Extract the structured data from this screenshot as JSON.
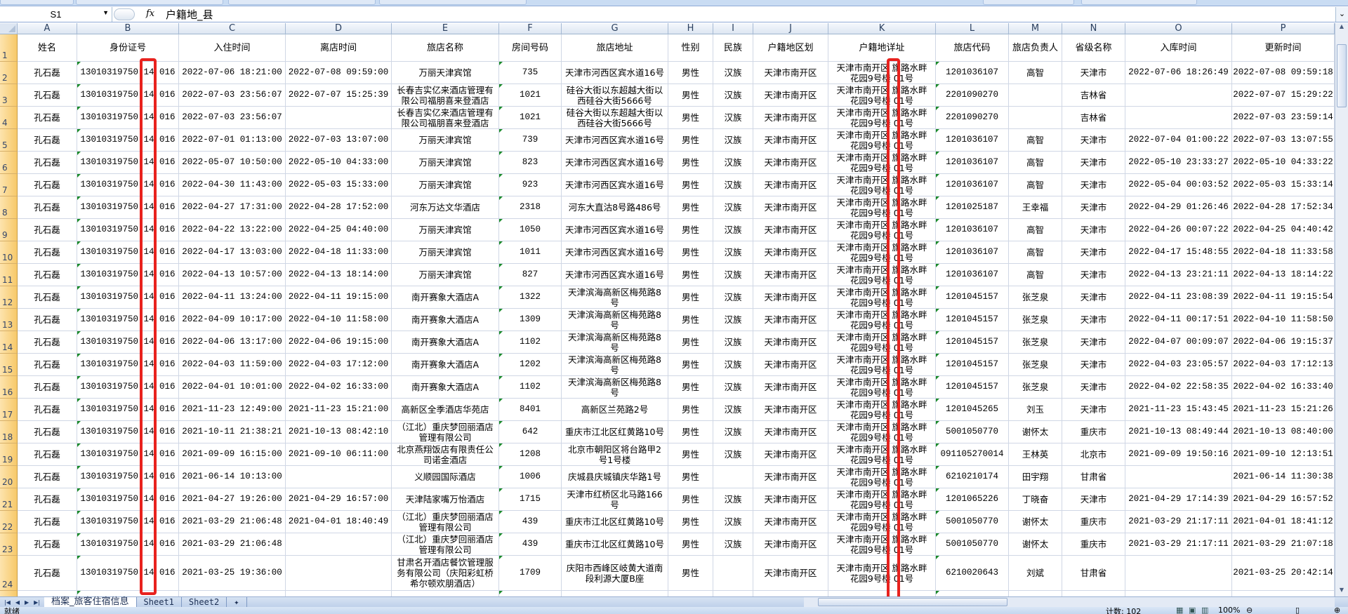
{
  "formula_bar": {
    "name_box": "S1",
    "fx_label": "fx",
    "content": "户籍地_县"
  },
  "columns": [
    "A",
    "B",
    "C",
    "D",
    "E",
    "F",
    "G",
    "H",
    "I",
    "J",
    "K",
    "L",
    "M",
    "N",
    "O",
    "P"
  ],
  "header_row": {
    "row_number": "1",
    "cells": [
      "姓名",
      "身份证号",
      "入住时间",
      "离店时间",
      "旅店名称",
      "房间号码",
      "旅店地址",
      "性别",
      "民族",
      "户籍地区划",
      "户籍地详址",
      "旅店代码",
      "旅店负责人",
      "省级名称",
      "入库时间",
      "更新时间"
    ]
  },
  "rows": [
    {
      "n": "2",
      "c": [
        "孔石磊",
        "13010319750 14 016",
        "2022-07-06 18:21:00",
        "2022-07-08 09:59:00",
        "万丽天津宾馆",
        "735",
        "天津市河西区宾水道16号",
        "男性",
        "汉族",
        "天津市南开区",
        "天津市南开区 旗路水畔\n花园9号楼 01号",
        "1201036107",
        "高智",
        "天津市",
        "2022-07-06 18:26:49",
        "2022-07-08 09:59:18"
      ]
    },
    {
      "n": "3",
      "c": [
        "孔石磊",
        "13010319750 14 016",
        "2022-07-03 23:56:07",
        "2022-07-07 15:25:39",
        "长春吉实亿来酒店管理有\n限公司福朋喜来登酒店",
        "1021",
        "硅谷大街以东超越大街以\n西硅谷大街5666号",
        "男性",
        "汉族",
        "天津市南开区",
        "天津市南开区 旗路水畔\n花园9号楼 01号",
        "2201090270",
        "",
        "吉林省",
        "",
        "2022-07-07 15:29:22"
      ]
    },
    {
      "n": "4",
      "c": [
        "孔石磊",
        "13010319750 14 016",
        "2022-07-03 23:56:07",
        "",
        "长春吉实亿来酒店管理有\n限公司福朋喜来登酒店",
        "1021",
        "硅谷大街以东超越大街以\n西硅谷大街5666号",
        "男性",
        "汉族",
        "天津市南开区",
        "天津市南开区 旗路水畔\n花园9号楼 01号",
        "2201090270",
        "",
        "吉林省",
        "",
        "2022-07-03 23:59:14"
      ]
    },
    {
      "n": "5",
      "c": [
        "孔石磊",
        "13010319750 14 016",
        "2022-07-01 01:13:00",
        "2022-07-03 13:07:00",
        "万丽天津宾馆",
        "739",
        "天津市河西区宾水道16号",
        "男性",
        "汉族",
        "天津市南开区",
        "天津市南开区 旗路水畔\n花园9号楼 01号",
        "1201036107",
        "高智",
        "天津市",
        "2022-07-04 01:00:22",
        "2022-07-03 13:07:55"
      ]
    },
    {
      "n": "6",
      "c": [
        "孔石磊",
        "13010319750 14 016",
        "2022-05-07 10:50:00",
        "2022-05-10 04:33:00",
        "万丽天津宾馆",
        "823",
        "天津市河西区宾水道16号",
        "男性",
        "汉族",
        "天津市南开区",
        "天津市南开区 旗路水畔\n花园9号楼 01号",
        "1201036107",
        "高智",
        "天津市",
        "2022-05-10 23:33:27",
        "2022-05-10 04:33:22"
      ]
    },
    {
      "n": "7",
      "c": [
        "孔石磊",
        "13010319750 14 016",
        "2022-04-30 11:43:00",
        "2022-05-03 15:33:00",
        "万丽天津宾馆",
        "923",
        "天津市河西区宾水道16号",
        "男性",
        "汉族",
        "天津市南开区",
        "天津市南开区 旗路水畔\n花园9号楼 01号",
        "1201036107",
        "高智",
        "天津市",
        "2022-05-04 00:03:52",
        "2022-05-03 15:33:14"
      ]
    },
    {
      "n": "8",
      "c": [
        "孔石磊",
        "13010319750 14 016",
        "2022-04-27 17:31:00",
        "2022-04-28 17:52:00",
        "河东万达文华酒店",
        "2318",
        "河东大直沽8号路486号",
        "男性",
        "汉族",
        "天津市南开区",
        "天津市南开区 旗路水畔\n花园9号楼 01号",
        "1201025187",
        "王幸福",
        "天津市",
        "2022-04-29 01:26:46",
        "2022-04-28 17:52:34"
      ]
    },
    {
      "n": "9",
      "c": [
        "孔石磊",
        "13010319750 14 016",
        "2022-04-22 13:22:00",
        "2022-04-25 04:40:00",
        "万丽天津宾馆",
        "1050",
        "天津市河西区宾水道16号",
        "男性",
        "汉族",
        "天津市南开区",
        "天津市南开区 旗路水畔\n花园9号楼 01号",
        "1201036107",
        "高智",
        "天津市",
        "2022-04-26 00:07:22",
        "2022-04-25 04:40:42"
      ]
    },
    {
      "n": "10",
      "c": [
        "孔石磊",
        "13010319750 14 016",
        "2022-04-17 13:03:00",
        "2022-04-18 11:33:00",
        "万丽天津宾馆",
        "1011",
        "天津市河西区宾水道16号",
        "男性",
        "汉族",
        "天津市南开区",
        "天津市南开区 旗路水畔\n花园9号楼 01号",
        "1201036107",
        "高智",
        "天津市",
        "2022-04-17 15:48:55",
        "2022-04-18 11:33:58"
      ]
    },
    {
      "n": "11",
      "c": [
        "孔石磊",
        "13010319750 14 016",
        "2022-04-13 10:57:00",
        "2022-04-13 18:14:00",
        "万丽天津宾馆",
        "827",
        "天津市河西区宾水道16号",
        "男性",
        "汉族",
        "天津市南开区",
        "天津市南开区 旗路水畔\n花园9号楼 01号",
        "1201036107",
        "高智",
        "天津市",
        "2022-04-13 23:21:11",
        "2022-04-13 18:14:22"
      ]
    },
    {
      "n": "12",
      "c": [
        "孔石磊",
        "13010319750 14 016",
        "2022-04-11 13:24:00",
        "2022-04-11 19:15:00",
        "南开赛象大酒店A",
        "1322",
        "天津滨海高新区梅苑路8\n号",
        "男性",
        "汉族",
        "天津市南开区",
        "天津市南开区 旗路水畔\n花园9号楼 01号",
        "1201045157",
        "张芝泉",
        "天津市",
        "2022-04-11 23:08:39",
        "2022-04-11 19:15:54"
      ]
    },
    {
      "n": "13",
      "c": [
        "孔石磊",
        "13010319750 14 016",
        "2022-04-09 10:17:00",
        "2022-04-10 11:58:00",
        "南开赛象大酒店A",
        "1309",
        "天津滨海高新区梅苑路8\n号",
        "男性",
        "汉族",
        "天津市南开区",
        "天津市南开区 旗路水畔\n花园9号楼 01号",
        "1201045157",
        "张芝泉",
        "天津市",
        "2022-04-11 00:17:51",
        "2022-04-10 11:58:50"
      ]
    },
    {
      "n": "14",
      "c": [
        "孔石磊",
        "13010319750 14 016",
        "2022-04-06 13:17:00",
        "2022-04-06 19:15:00",
        "南开赛象大酒店A",
        "1102",
        "天津滨海高新区梅苑路8\n号",
        "男性",
        "汉族",
        "天津市南开区",
        "天津市南开区 旗路水畔\n花园9号楼 01号",
        "1201045157",
        "张芝泉",
        "天津市",
        "2022-04-07 00:09:07",
        "2022-04-06 19:15:37"
      ]
    },
    {
      "n": "15",
      "c": [
        "孔石磊",
        "13010319750 14 016",
        "2022-04-03 11:59:00",
        "2022-04-03 17:12:00",
        "南开赛象大酒店A",
        "1202",
        "天津滨海高新区梅苑路8\n号",
        "男性",
        "汉族",
        "天津市南开区",
        "天津市南开区 旗路水畔\n花园9号楼 01号",
        "1201045157",
        "张芝泉",
        "天津市",
        "2022-04-03 23:05:57",
        "2022-04-03 17:12:13"
      ]
    },
    {
      "n": "16",
      "c": [
        "孔石磊",
        "13010319750 14 016",
        "2022-04-01 10:01:00",
        "2022-04-02 16:33:00",
        "南开赛象大酒店A",
        "1102",
        "天津滨海高新区梅苑路8\n号",
        "男性",
        "汉族",
        "天津市南开区",
        "天津市南开区 旗路水畔\n花园9号楼 01号",
        "1201045157",
        "张芝泉",
        "天津市",
        "2022-04-02 22:58:35",
        "2022-04-02 16:33:40"
      ]
    },
    {
      "n": "17",
      "c": [
        "孔石磊",
        "13010319750 14 016",
        "2021-11-23 12:49:00",
        "2021-11-23 15:21:00",
        "高新区全季酒店华苑店",
        "8401",
        "高新区兰苑路2号",
        "男性",
        "汉族",
        "天津市南开区",
        "天津市南开区 旗路水畔\n花园9号楼 01号",
        "1201045265",
        "刘玉",
        "天津市",
        "2021-11-23 15:43:45",
        "2021-11-23 15:21:26"
      ]
    },
    {
      "n": "18",
      "c": [
        "孔石磊",
        "13010319750 14 016",
        "2021-10-11 21:38:21",
        "2021-10-13 08:42:10",
        "（江北）重庆梦回丽酒店\n管理有限公司",
        "642",
        "重庆市江北区红黄路10号",
        "男性",
        "汉族",
        "天津市南开区",
        "天津市南开区 旗路水畔\n花园9号楼 01号",
        "5001050770",
        "谢怀太",
        "重庆市",
        "2021-10-13 08:49:44",
        "2021-10-13 08:40:00"
      ]
    },
    {
      "n": "19",
      "c": [
        "孔石磊",
        "13010319750 14 016",
        "2021-09-09 16:15:00",
        "2021-09-10 06:11:00",
        "北京燕翔饭店有限责任公\n司诺金酒店",
        "1208",
        "北京市朝阳区将台路甲2\n号1号楼",
        "男性",
        "汉族",
        "天津市南开区",
        "天津市南开区 旗路水畔\n花园9号楼 01号",
        "091105270014",
        "王林英",
        "北京市",
        "2021-09-09 19:50:16",
        "2021-09-10 12:13:51"
      ]
    },
    {
      "n": "20",
      "c": [
        "孔石磊",
        "13010319750 14 016",
        "2021-06-14 10:13:00",
        "",
        "义顺园国际酒店",
        "1006",
        "庆城县庆城镇庆华路1号",
        "男性",
        "",
        "天津市南开区",
        "天津市南开区 旗路水畔\n花园9号楼 01号",
        "6210210174",
        "田宇翔",
        "甘肃省",
        "",
        "2021-06-14 11:30:38"
      ]
    },
    {
      "n": "21",
      "c": [
        "孔石磊",
        "13010319750 14 016",
        "2021-04-27 19:26:00",
        "2021-04-29 16:57:00",
        "天津陆家嘴万怡酒店",
        "1715",
        "天津市红桥区北马路166\n号",
        "男性",
        "汉族",
        "天津市南开区",
        "天津市南开区 旗路水畔\n花园9号楼 01号",
        "1201065226",
        "丁晓奋",
        "天津市",
        "2021-04-29 17:14:39",
        "2021-04-29 16:57:52"
      ]
    },
    {
      "n": "22",
      "c": [
        "孔石磊",
        "13010319750 14 016",
        "2021-03-29 21:06:48",
        "2021-04-01 18:40:49",
        "（江北）重庆梦回丽酒店\n管理有限公司",
        "439",
        "重庆市江北区红黄路10号",
        "男性",
        "汉族",
        "天津市南开区",
        "天津市南开区 旗路水畔\n花园9号楼 01号",
        "5001050770",
        "谢怀太",
        "重庆市",
        "2021-03-29 21:17:11",
        "2021-04-01 18:41:12"
      ]
    },
    {
      "n": "23",
      "c": [
        "孔石磊",
        "13010319750 14 016",
        "2021-03-29 21:06:48",
        "",
        "（江北）重庆梦回丽酒店\n管理有限公司",
        "439",
        "重庆市江北区红黄路10号",
        "男性",
        "汉族",
        "天津市南开区",
        "天津市南开区 旗路水畔\n花园9号楼 01号",
        "5001050770",
        "谢怀太",
        "重庆市",
        "2021-03-29 21:17:11",
        "2021-03-29 21:07:18"
      ]
    },
    {
      "n": "24",
      "c": [
        "孔石磊",
        "13010319750 14 016",
        "2021-03-25 19:36:00",
        "",
        "甘肃名开酒店餐饮管理服\n务有限公司（庆阳彩虹桥\n希尔顿欢朋酒店）",
        "1709",
        "庆阳市西峰区岐黄大道南\n段利源大厦B座",
        "男性",
        "",
        "天津市南开区",
        "天津市南开区 旗路水畔\n花园9号楼 01号",
        "6210020643",
        "刘斌",
        "甘肃省",
        "",
        "2021-03-25 20:42:14"
      ]
    }
  ],
  "sheet_tabs": [
    "档案_旅客住宿信息",
    "Sheet1",
    "Sheet2"
  ],
  "status": {
    "ready": "就绪",
    "count": "计数: 102",
    "zoom": "100%"
  },
  "highlight_color": "#e8221e"
}
